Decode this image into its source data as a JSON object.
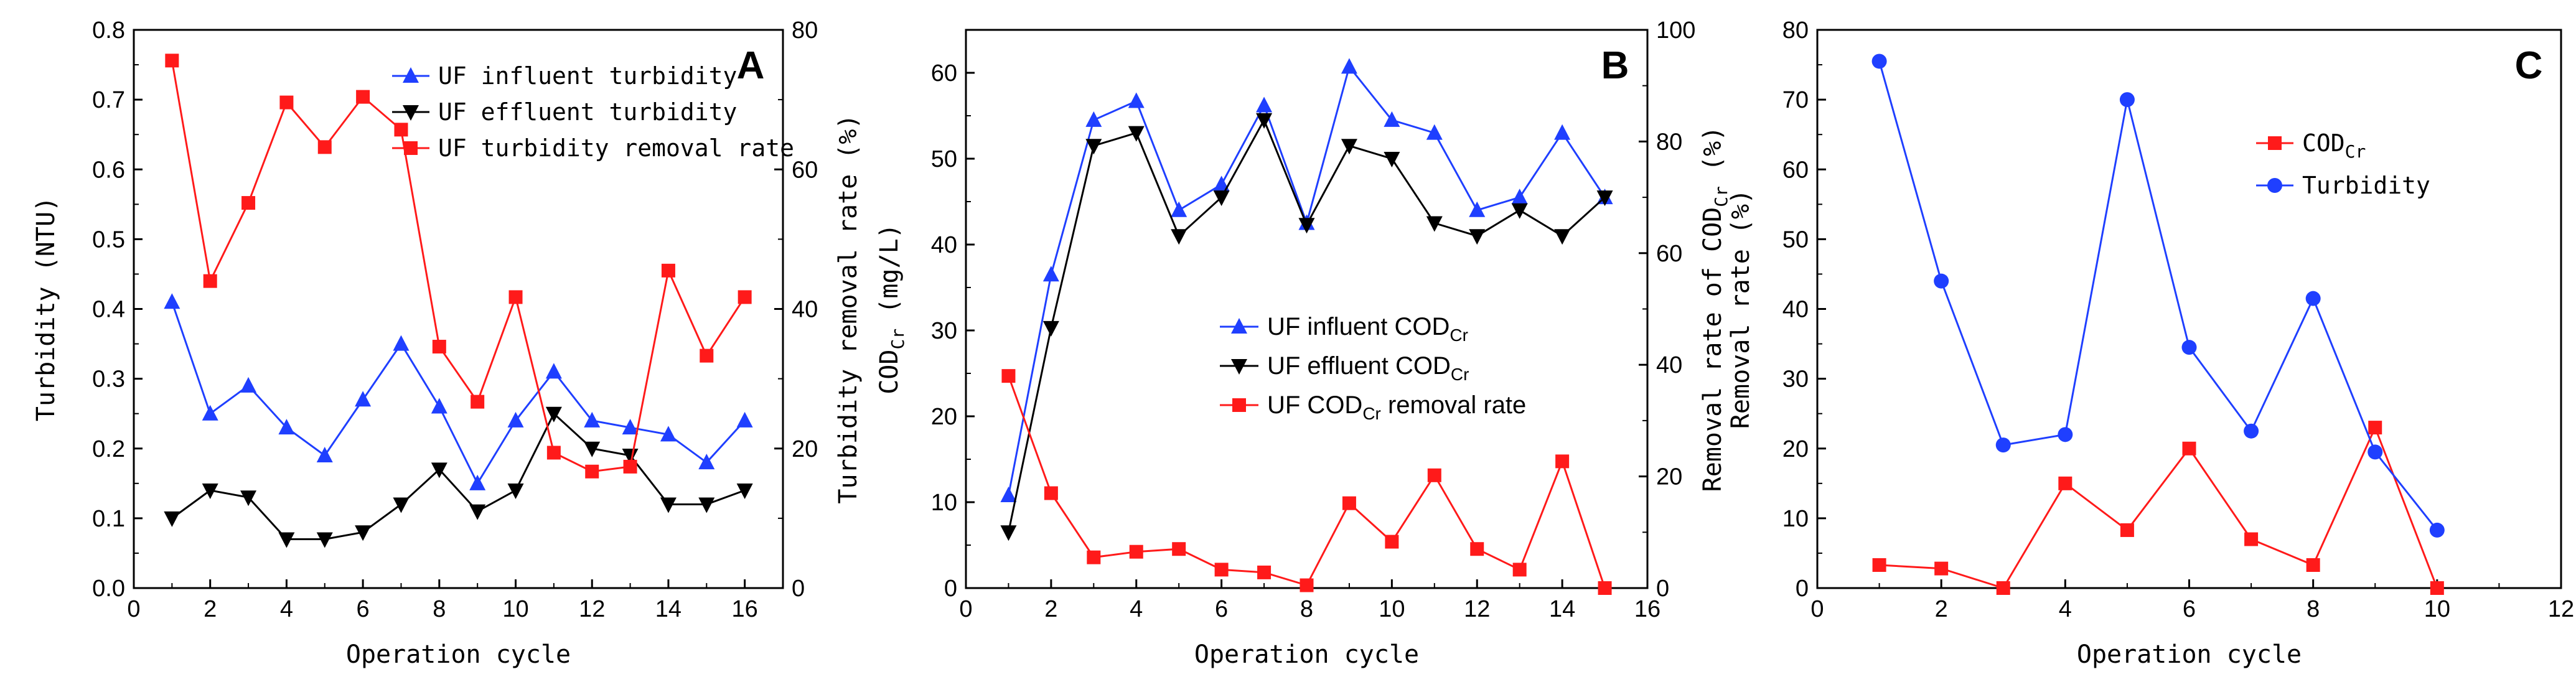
{
  "colors": {
    "blue": "#1f3fff",
    "black": "#000000",
    "red": "#ff1a1a",
    "axis": "#000000"
  },
  "chart_data": [
    {
      "id": "A",
      "type": "line",
      "panel_label": "A",
      "xlabel": "Operation cycle",
      "ylabel_left": "Turbidity (NTU)",
      "ylabel_right": "Turbidity removal rate (%)",
      "xlim": [
        0,
        17
      ],
      "xticks": [
        "0",
        "2",
        "4",
        "6",
        "8",
        "10",
        "12",
        "14",
        "16"
      ],
      "ylim_left": [
        0,
        0.8
      ],
      "yticks_left": [
        "0.0",
        "0.1",
        "0.2",
        "0.3",
        "0.4",
        "0.5",
        "0.6",
        "0.7",
        "0.8"
      ],
      "ylim_right": [
        0,
        80
      ],
      "yticks_right": [
        "0",
        "20",
        "40",
        "60",
        "80"
      ],
      "legend_position": "top-right",
      "series": [
        {
          "name": "UF influent turbidity",
          "axis": "left",
          "color": "blue",
          "marker": "triangle-up",
          "x": [
            1,
            2,
            3,
            4,
            5,
            6,
            7,
            8,
            9,
            10,
            11,
            12,
            13,
            14,
            15,
            16
          ],
          "y": [
            0.41,
            0.25,
            0.29,
            0.23,
            0.19,
            0.27,
            0.35,
            0.26,
            0.15,
            0.24,
            0.31,
            0.24,
            0.23,
            0.22,
            0.18,
            0.24
          ]
        },
        {
          "name": "UF effluent turbidity",
          "axis": "left",
          "color": "black",
          "marker": "triangle-down",
          "x": [
            1,
            2,
            3,
            4,
            5,
            6,
            7,
            8,
            9,
            10,
            11,
            12,
            13,
            14,
            15,
            16
          ],
          "y": [
            0.1,
            0.14,
            0.13,
            0.07,
            0.07,
            0.08,
            0.12,
            0.17,
            0.11,
            0.14,
            0.25,
            0.2,
            0.19,
            0.12,
            0.12,
            0.14
          ]
        },
        {
          "name": "UF turbidity removal rate",
          "axis": "right",
          "color": "red",
          "marker": "square",
          "x": [
            1,
            2,
            3,
            4,
            5,
            6,
            7,
            8,
            9,
            10,
            11,
            12,
            13,
            14,
            15,
            16
          ],
          "y": [
            75.6,
            44.0,
            55.2,
            69.6,
            63.2,
            70.4,
            65.7,
            34.6,
            26.7,
            41.7,
            19.4,
            16.7,
            17.4,
            45.5,
            33.3,
            41.7
          ]
        }
      ]
    },
    {
      "id": "B",
      "type": "line",
      "panel_label": "B",
      "xlabel": "Operation cycle",
      "ylabel_left": "COD",
      "ylabel_left_sub": "Cr",
      "ylabel_left_suffix": " (mg/L)",
      "ylabel_right": "Removal rate of COD",
      "ylabel_right_sub": "Cr",
      "ylabel_right_suffix": " (%)",
      "xlim": [
        0,
        16
      ],
      "xticks": [
        "0",
        "2",
        "4",
        "6",
        "8",
        "10",
        "12",
        "14",
        "16"
      ],
      "ylim_left": [
        0,
        65
      ],
      "yticks_left": [
        "0",
        "10",
        "20",
        "30",
        "40",
        "50",
        "60"
      ],
      "ylim_right": [
        0,
        100
      ],
      "yticks_right": [
        "0",
        "20",
        "40",
        "60",
        "80",
        "100"
      ],
      "legend_position": "center",
      "series": [
        {
          "name": "UF influent COD",
          "name_sub": "Cr",
          "axis": "left",
          "color": "blue",
          "marker": "triangle-up",
          "x": [
            1,
            2,
            3,
            4,
            5,
            6,
            7,
            8,
            9,
            10,
            11,
            12,
            13,
            14,
            15
          ],
          "y": [
            10.8,
            36.5,
            54.5,
            56.7,
            44.0,
            47.0,
            56.2,
            42.5,
            60.7,
            54.5,
            53.0,
            44.0,
            45.5,
            53.0,
            45.5
          ]
        },
        {
          "name": "UF effluent COD",
          "name_sub": "Cr",
          "axis": "left",
          "color": "black",
          "marker": "triangle-down",
          "x": [
            1,
            2,
            3,
            4,
            5,
            6,
            7,
            8,
            9,
            10,
            11,
            12,
            13,
            14,
            15
          ],
          "y": [
            6.5,
            30.3,
            51.5,
            53.0,
            41.0,
            45.5,
            54.5,
            42.3,
            51.5,
            50.0,
            42.5,
            41.0,
            44.0,
            41.0,
            45.5
          ]
        },
        {
          "name": "UF COD",
          "name_sub": "Cr",
          "name_suffix": " removal rate",
          "axis": "right",
          "color": "red",
          "marker": "square",
          "x": [
            1,
            2,
            3,
            4,
            5,
            6,
            7,
            8,
            9,
            10,
            11,
            12,
            13,
            14,
            15
          ],
          "y": [
            38.0,
            17.0,
            5.5,
            6.5,
            7.0,
            3.3,
            2.8,
            0.5,
            15.2,
            8.3,
            20.2,
            7.0,
            3.3,
            22.7,
            0.0
          ]
        }
      ]
    },
    {
      "id": "C",
      "type": "line",
      "panel_label": "C",
      "xlabel": "Operation cycle",
      "ylabel_left": "Removal rate (%)",
      "xlim": [
        0,
        12
      ],
      "xticks": [
        "0",
        "2",
        "4",
        "6",
        "8",
        "10",
        "12"
      ],
      "ylim_left": [
        0,
        80
      ],
      "yticks_left": [
        "0",
        "10",
        "20",
        "30",
        "40",
        "50",
        "60",
        "70",
        "80"
      ],
      "legend_position": "top-right",
      "series": [
        {
          "name": "COD",
          "name_sub": "Cr",
          "axis": "left",
          "color": "red",
          "marker": "square",
          "x": [
            1,
            2,
            3,
            4,
            5,
            6,
            7,
            8,
            9,
            10
          ],
          "y": [
            3.3,
            2.8,
            0.0,
            15.0,
            8.3,
            20.0,
            7.0,
            3.3,
            23.0,
            0.0
          ]
        },
        {
          "name": "Turbidity",
          "axis": "left",
          "color": "blue",
          "marker": "circle",
          "x": [
            1,
            2,
            3,
            4,
            5,
            6,
            7,
            8,
            9,
            10
          ],
          "y": [
            75.5,
            44.0,
            20.5,
            22.0,
            70.0,
            34.5,
            22.5,
            41.5,
            19.5,
            8.3
          ]
        }
      ]
    }
  ]
}
